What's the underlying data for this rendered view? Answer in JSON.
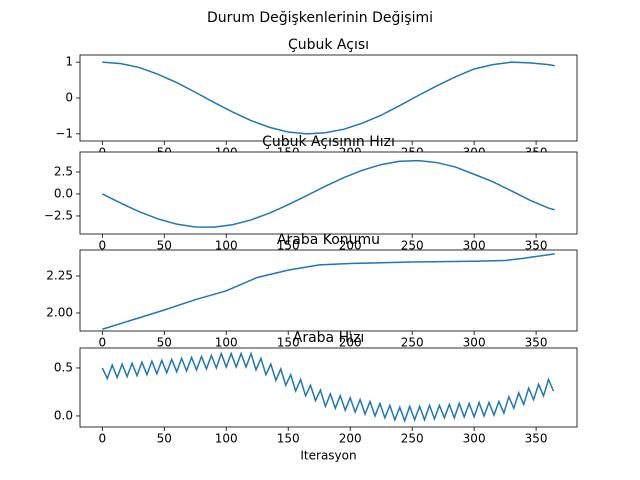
{
  "title": "Durum Değişkenlerinin Değişimi",
  "chart_data": [
    {
      "type": "line",
      "title": "Çubuk Açısı",
      "color": "#1f77b4",
      "x": [
        0,
        15,
        30,
        45,
        60,
        75,
        90,
        105,
        120,
        135,
        150,
        165,
        180,
        195,
        210,
        225,
        240,
        255,
        270,
        285,
        300,
        315,
        330,
        345,
        360,
        365
      ],
      "values": [
        1,
        0.96,
        0.85,
        0.66,
        0.43,
        0.16,
        -0.12,
        -0.39,
        -0.63,
        -0.82,
        -0.95,
        -1,
        -0.97,
        -0.87,
        -0.7,
        -0.48,
        -0.21,
        0.07,
        0.34,
        0.59,
        0.81,
        0.93,
        1,
        0.98,
        0.93,
        0.9
      ],
      "xlim": [
        -18,
        383
      ],
      "xticks": [
        0,
        50,
        100,
        150,
        200,
        250,
        300,
        350
      ],
      "ylim": [
        -1.2,
        1.2
      ],
      "yticks": [
        {
          "value": -1,
          "label": "−1"
        },
        0,
        1
      ]
    },
    {
      "type": "line",
      "title": "Çubuk Açısının Hızı",
      "color": "#1f77b4",
      "x": [
        0,
        15,
        30,
        45,
        60,
        75,
        90,
        105,
        120,
        135,
        150,
        165,
        180,
        195,
        210,
        225,
        240,
        255,
        270,
        285,
        300,
        315,
        330,
        345,
        360,
        365
      ],
      "values": [
        0,
        -1.05,
        -2.03,
        -2.84,
        -3.43,
        -3.75,
        -3.77,
        -3.5,
        -2.95,
        -2.17,
        -1.22,
        -0.18,
        0.88,
        1.86,
        2.7,
        3.34,
        3.72,
        3.79,
        3.57,
        3.06,
        2.24,
        1.39,
        0.36,
        -0.71,
        -1.6,
        -1.8
      ],
      "xlim": [
        -18,
        383
      ],
      "xticks": [
        0,
        50,
        100,
        150,
        200,
        250,
        300,
        350
      ],
      "ylim": [
        -4.55,
        4.77
      ],
      "yticks": [
        {
          "value": -2.5,
          "label": "−2.5"
        },
        {
          "value": 0,
          "label": "0.0"
        },
        2.5
      ]
    },
    {
      "type": "line",
      "title": "Araba Konumu",
      "color": "#1f77b4",
      "x": [
        0,
        25,
        50,
        75,
        100,
        125,
        150,
        175,
        200,
        250,
        300,
        325,
        340,
        365
      ],
      "values": [
        1.89,
        1.955,
        2.02,
        2.09,
        2.15,
        2.24,
        2.29,
        2.325,
        2.335,
        2.345,
        2.35,
        2.355,
        2.37,
        2.4
      ],
      "xlim": [
        -18,
        383
      ],
      "xticks": [
        0,
        50,
        100,
        150,
        200,
        250,
        300,
        350
      ],
      "ylim": [
        1.878,
        2.426
      ],
      "yticks": [
        {
          "value": 2,
          "label": "2.00"
        },
        2.25
      ]
    },
    {
      "type": "line",
      "title": "Araba Hızı",
      "xlabel": "Iterasyon",
      "color": "#1f77b4",
      "x": [
        0,
        4,
        8,
        12,
        16,
        20,
        24,
        28,
        32,
        36,
        40,
        44,
        48,
        52,
        56,
        60,
        64,
        68,
        72,
        76,
        80,
        84,
        88,
        92,
        96,
        100,
        104,
        108,
        112,
        116,
        120,
        124,
        128,
        132,
        136,
        140,
        144,
        148,
        152,
        156,
        160,
        164,
        168,
        172,
        176,
        180,
        184,
        188,
        192,
        196,
        200,
        204,
        208,
        212,
        216,
        220,
        224,
        228,
        232,
        236,
        240,
        244,
        248,
        252,
        256,
        260,
        264,
        268,
        272,
        276,
        280,
        284,
        288,
        292,
        296,
        300,
        304,
        308,
        312,
        316,
        320,
        324,
        328,
        332,
        336,
        340,
        344,
        348,
        352,
        356,
        360,
        364
      ],
      "values": [
        0.5,
        0.39,
        0.53,
        0.4,
        0.54,
        0.41,
        0.55,
        0.42,
        0.56,
        0.43,
        0.57,
        0.44,
        0.58,
        0.45,
        0.59,
        0.46,
        0.6,
        0.47,
        0.61,
        0.48,
        0.62,
        0.49,
        0.63,
        0.5,
        0.65,
        0.51,
        0.65,
        0.51,
        0.65,
        0.51,
        0.65,
        0.48,
        0.6,
        0.43,
        0.54,
        0.37,
        0.49,
        0.32,
        0.43,
        0.26,
        0.38,
        0.21,
        0.32,
        0.16,
        0.27,
        0.1,
        0.23,
        0.08,
        0.21,
        0.06,
        0.19,
        0.04,
        0.17,
        0.02,
        0.15,
        0,
        0.13,
        -0.02,
        0.11,
        -0.04,
        0.09,
        -0.05,
        0.1,
        -0.04,
        0.1,
        -0.04,
        0.11,
        -0.03,
        0.11,
        -0.02,
        0.12,
        -0.02,
        0.13,
        -0.01,
        0.13,
        -0.01,
        0.14,
        0,
        0.14,
        0.01,
        0.15,
        0.03,
        0.2,
        0.08,
        0.24,
        0.12,
        0.29,
        0.17,
        0.33,
        0.21,
        0.38,
        0.26
      ],
      "xlim": [
        -18,
        383
      ],
      "xticks": [
        0,
        50,
        100,
        150,
        200,
        250,
        300,
        350
      ],
      "ylim": [
        -0.115,
        0.708
      ],
      "yticks": [
        {
          "value": 0,
          "label": "0.0"
        },
        0.5
      ]
    }
  ]
}
